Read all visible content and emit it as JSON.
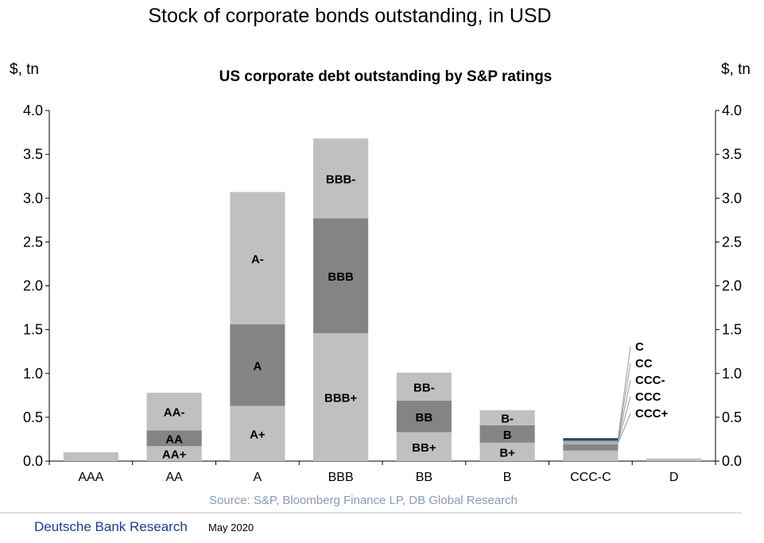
{
  "page_title": "Stock of corporate bonds outstanding, in USD",
  "footer": {
    "brand": "Deutsche Bank Research",
    "date": "May 2020"
  },
  "chart_data": {
    "type": "bar",
    "stacked": true,
    "title": "US corporate debt outstanding by S&P ratings",
    "ylabel_left": "$, tn",
    "ylabel_right": "$, tn",
    "ylim": [
      0,
      4.0
    ],
    "yticks": [
      "0.0",
      "0.5",
      "1.0",
      "1.5",
      "2.0",
      "2.5",
      "3.0",
      "3.5",
      "4.0"
    ],
    "categories": [
      "AAA",
      "AA",
      "A",
      "BBB",
      "BB",
      "B",
      "CCC-C",
      "D"
    ],
    "bars": [
      {
        "category": "AAA",
        "segments": [
          {
            "label": "",
            "value": 0.1,
            "color": "#c0c0c0"
          }
        ]
      },
      {
        "category": "AA",
        "segments": [
          {
            "label": "AA+",
            "value": 0.17,
            "color": "#c0c0c0"
          },
          {
            "label": "AA",
            "value": 0.18,
            "color": "#848484"
          },
          {
            "label": "AA-",
            "value": 0.43,
            "color": "#c0c0c0"
          }
        ]
      },
      {
        "category": "A",
        "segments": [
          {
            "label": "A+",
            "value": 0.63,
            "color": "#c0c0c0"
          },
          {
            "label": "A",
            "value": 0.93,
            "color": "#848484"
          },
          {
            "label": "A-",
            "value": 1.51,
            "color": "#c0c0c0"
          }
        ]
      },
      {
        "category": "BBB",
        "segments": [
          {
            "label": "BBB+",
            "value": 1.46,
            "color": "#c0c0c0"
          },
          {
            "label": "BBB",
            "value": 1.31,
            "color": "#848484"
          },
          {
            "label": "BBB-",
            "value": 0.91,
            "color": "#c0c0c0"
          }
        ]
      },
      {
        "category": "BB",
        "segments": [
          {
            "label": "BB+",
            "value": 0.33,
            "color": "#c0c0c0"
          },
          {
            "label": "BB",
            "value": 0.36,
            "color": "#848484"
          },
          {
            "label": "BB-",
            "value": 0.32,
            "color": "#c0c0c0"
          }
        ]
      },
      {
        "category": "B",
        "segments": [
          {
            "label": "B+",
            "value": 0.21,
            "color": "#c0c0c0"
          },
          {
            "label": "B",
            "value": 0.2,
            "color": "#848484"
          },
          {
            "label": "B-",
            "value": 0.17,
            "color": "#c0c0c0"
          }
        ]
      },
      {
        "category": "CCC-C",
        "callout": true,
        "segments": [
          {
            "label": "CCC+",
            "value": 0.12,
            "color": "#c0c0c0"
          },
          {
            "label": "CCC",
            "value": 0.07,
            "color": "#848484"
          },
          {
            "label": "CCC-",
            "value": 0.04,
            "color": "#b0b0b0"
          },
          {
            "label": "CC",
            "value": 0.02,
            "color": "#2e5f86"
          },
          {
            "label": "C",
            "value": 0.01,
            "color": "#000000"
          }
        ]
      },
      {
        "category": "D",
        "segments": [
          {
            "label": "",
            "value": 0.03,
            "color": "#c0c0c0"
          }
        ]
      }
    ],
    "grid": false,
    "source": "Source: S&P, Bloomberg Finance LP, DB Global Research"
  }
}
